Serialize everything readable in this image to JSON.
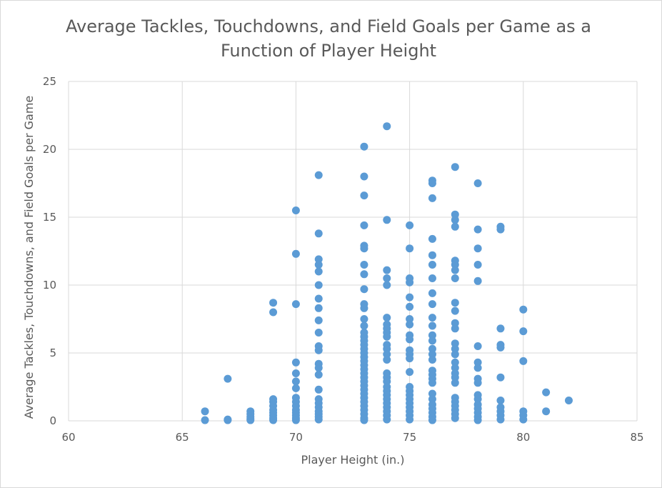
{
  "chart_data": {
    "type": "scatter",
    "title_line1": "Average Tackles, Touchdowns, and Field Goals per Game as a",
    "title_line2": "Function of Player Height",
    "xlabel": "Player Height (in.)",
    "ylabel": "Average Tackles, Touchdowns, and Field Goals per Game",
    "xlim": [
      60,
      85
    ],
    "ylim": [
      0,
      25
    ],
    "xticks": [
      60,
      65,
      70,
      75,
      80,
      85
    ],
    "yticks": [
      0,
      5,
      10,
      15,
      20,
      25
    ],
    "grid": true,
    "legend": "none",
    "marker_color": "#5b9bd5",
    "grid_color": "#d9d9d9",
    "series": [
      {
        "points": [
          [
            66,
            0.7
          ],
          [
            66,
            0.05
          ],
          [
            67,
            3.1
          ],
          [
            67,
            0.1
          ],
          [
            67,
            0.05
          ],
          [
            68,
            0.7
          ],
          [
            68,
            0.5
          ],
          [
            68,
            0.3
          ],
          [
            68,
            0.15
          ],
          [
            68,
            0.05
          ],
          [
            69,
            8.7
          ],
          [
            69,
            8.0
          ],
          [
            69,
            1.6
          ],
          [
            69,
            1.4
          ],
          [
            69,
            1.1
          ],
          [
            69,
            0.8
          ],
          [
            69,
            0.6
          ],
          [
            69,
            0.4
          ],
          [
            69,
            0.2
          ],
          [
            69,
            0.05
          ],
          [
            70,
            15.5
          ],
          [
            70,
            12.3
          ],
          [
            70,
            8.6
          ],
          [
            70,
            4.3
          ],
          [
            70,
            3.5
          ],
          [
            70,
            2.9
          ],
          [
            70,
            2.4
          ],
          [
            70,
            1.7
          ],
          [
            70,
            1.4
          ],
          [
            70,
            1.1
          ],
          [
            70,
            0.8
          ],
          [
            70,
            0.6
          ],
          [
            70,
            0.4
          ],
          [
            70,
            0.2
          ],
          [
            70,
            0.05
          ],
          [
            71,
            18.1
          ],
          [
            71,
            13.8
          ],
          [
            71,
            11.9
          ],
          [
            71,
            11.5
          ],
          [
            71,
            11.0
          ],
          [
            71,
            10.0
          ],
          [
            71,
            9.0
          ],
          [
            71,
            8.3
          ],
          [
            71,
            7.4
          ],
          [
            71,
            6.5
          ],
          [
            71,
            5.5
          ],
          [
            71,
            5.2
          ],
          [
            71,
            4.2
          ],
          [
            71,
            3.9
          ],
          [
            71,
            3.4
          ],
          [
            71,
            2.3
          ],
          [
            71,
            1.6
          ],
          [
            71,
            1.3
          ],
          [
            71,
            1.0
          ],
          [
            71,
            0.7
          ],
          [
            71,
            0.5
          ],
          [
            71,
            0.3
          ],
          [
            71,
            0.1
          ],
          [
            73,
            20.2
          ],
          [
            73,
            18.0
          ],
          [
            73,
            16.6
          ],
          [
            73,
            14.4
          ],
          [
            73,
            12.9
          ],
          [
            73,
            12.7
          ],
          [
            73,
            11.5
          ],
          [
            73,
            10.8
          ],
          [
            73,
            9.7
          ],
          [
            73,
            8.6
          ],
          [
            73,
            8.3
          ],
          [
            73,
            7.5
          ],
          [
            73,
            7.0
          ],
          [
            73,
            6.5
          ],
          [
            73,
            6.2
          ],
          [
            73,
            5.9
          ],
          [
            73,
            5.6
          ],
          [
            73,
            5.3
          ],
          [
            73,
            5.0
          ],
          [
            73,
            4.7
          ],
          [
            73,
            4.4
          ],
          [
            73,
            4.1
          ],
          [
            73,
            3.8
          ],
          [
            73,
            3.5
          ],
          [
            73,
            3.2
          ],
          [
            73,
            2.9
          ],
          [
            73,
            2.6
          ],
          [
            73,
            2.3
          ],
          [
            73,
            2.0
          ],
          [
            73,
            1.7
          ],
          [
            73,
            1.4
          ],
          [
            73,
            1.1
          ],
          [
            73,
            0.8
          ],
          [
            73,
            0.5
          ],
          [
            73,
            0.2
          ],
          [
            73,
            0.05
          ],
          [
            74,
            21.7
          ],
          [
            74,
            14.8
          ],
          [
            74,
            11.1
          ],
          [
            74,
            10.5
          ],
          [
            74,
            10.0
          ],
          [
            74,
            7.6
          ],
          [
            74,
            7.1
          ],
          [
            74,
            6.8
          ],
          [
            74,
            6.5
          ],
          [
            74,
            6.2
          ],
          [
            74,
            5.6
          ],
          [
            74,
            5.3
          ],
          [
            74,
            4.9
          ],
          [
            74,
            4.5
          ],
          [
            74,
            3.5
          ],
          [
            74,
            3.2
          ],
          [
            74,
            2.9
          ],
          [
            74,
            2.5
          ],
          [
            74,
            2.2
          ],
          [
            74,
            1.9
          ],
          [
            74,
            1.6
          ],
          [
            74,
            1.3
          ],
          [
            74,
            1.0
          ],
          [
            74,
            0.7
          ],
          [
            74,
            0.4
          ],
          [
            74,
            0.1
          ],
          [
            75,
            14.4
          ],
          [
            75,
            12.7
          ],
          [
            75,
            10.5
          ],
          [
            75,
            10.2
          ],
          [
            75,
            9.1
          ],
          [
            75,
            8.4
          ],
          [
            75,
            7.5
          ],
          [
            75,
            7.1
          ],
          [
            75,
            6.3
          ],
          [
            75,
            6.0
          ],
          [
            75,
            5.2
          ],
          [
            75,
            4.9
          ],
          [
            75,
            4.6
          ],
          [
            75,
            3.6
          ],
          [
            75,
            2.5
          ],
          [
            75,
            2.2
          ],
          [
            75,
            1.9
          ],
          [
            75,
            1.6
          ],
          [
            75,
            1.3
          ],
          [
            75,
            1.0
          ],
          [
            75,
            0.7
          ],
          [
            75,
            0.4
          ],
          [
            75,
            0.1
          ],
          [
            76,
            17.7
          ],
          [
            76,
            17.5
          ],
          [
            76,
            16.4
          ],
          [
            76,
            13.4
          ],
          [
            76,
            12.2
          ],
          [
            76,
            11.5
          ],
          [
            76,
            10.5
          ],
          [
            76,
            9.4
          ],
          [
            76,
            8.6
          ],
          [
            76,
            7.6
          ],
          [
            76,
            7.0
          ],
          [
            76,
            6.3
          ],
          [
            76,
            5.9
          ],
          [
            76,
            5.3
          ],
          [
            76,
            4.9
          ],
          [
            76,
            4.5
          ],
          [
            76,
            3.7
          ],
          [
            76,
            3.4
          ],
          [
            76,
            3.1
          ],
          [
            76,
            2.8
          ],
          [
            76,
            2.0
          ],
          [
            76,
            1.6
          ],
          [
            76,
            1.2
          ],
          [
            76,
            0.9
          ],
          [
            76,
            0.6
          ],
          [
            76,
            0.3
          ],
          [
            76,
            0.05
          ],
          [
            77,
            18.7
          ],
          [
            77,
            15.2
          ],
          [
            77,
            14.8
          ],
          [
            77,
            14.3
          ],
          [
            77,
            11.8
          ],
          [
            77,
            11.5
          ],
          [
            77,
            11.1
          ],
          [
            77,
            10.5
          ],
          [
            77,
            8.7
          ],
          [
            77,
            8.1
          ],
          [
            77,
            7.2
          ],
          [
            77,
            6.8
          ],
          [
            77,
            5.7
          ],
          [
            77,
            5.3
          ],
          [
            77,
            4.9
          ],
          [
            77,
            4.3
          ],
          [
            77,
            3.9
          ],
          [
            77,
            3.5
          ],
          [
            77,
            3.2
          ],
          [
            77,
            2.8
          ],
          [
            77,
            1.7
          ],
          [
            77,
            1.4
          ],
          [
            77,
            1.1
          ],
          [
            77,
            0.8
          ],
          [
            77,
            0.5
          ],
          [
            77,
            0.2
          ],
          [
            78,
            17.5
          ],
          [
            78,
            14.1
          ],
          [
            78,
            12.7
          ],
          [
            78,
            11.5
          ],
          [
            78,
            10.3
          ],
          [
            78,
            5.5
          ],
          [
            78,
            4.3
          ],
          [
            78,
            3.9
          ],
          [
            78,
            3.1
          ],
          [
            78,
            2.8
          ],
          [
            78,
            1.9
          ],
          [
            78,
            1.6
          ],
          [
            78,
            1.2
          ],
          [
            78,
            0.9
          ],
          [
            78,
            0.6
          ],
          [
            78,
            0.3
          ],
          [
            78,
            0.05
          ],
          [
            79,
            14.3
          ],
          [
            79,
            14.1
          ],
          [
            79,
            6.8
          ],
          [
            79,
            5.6
          ],
          [
            79,
            5.4
          ],
          [
            79,
            3.2
          ],
          [
            79,
            1.5
          ],
          [
            79,
            1.0
          ],
          [
            79,
            0.7
          ],
          [
            79,
            0.4
          ],
          [
            79,
            0.1
          ],
          [
            80,
            8.2
          ],
          [
            80,
            6.6
          ],
          [
            80,
            4.4
          ],
          [
            80,
            0.7
          ],
          [
            80,
            0.4
          ],
          [
            80,
            0.1
          ],
          [
            81,
            2.1
          ],
          [
            81,
            0.7
          ],
          [
            82,
            1.5
          ]
        ]
      }
    ]
  }
}
